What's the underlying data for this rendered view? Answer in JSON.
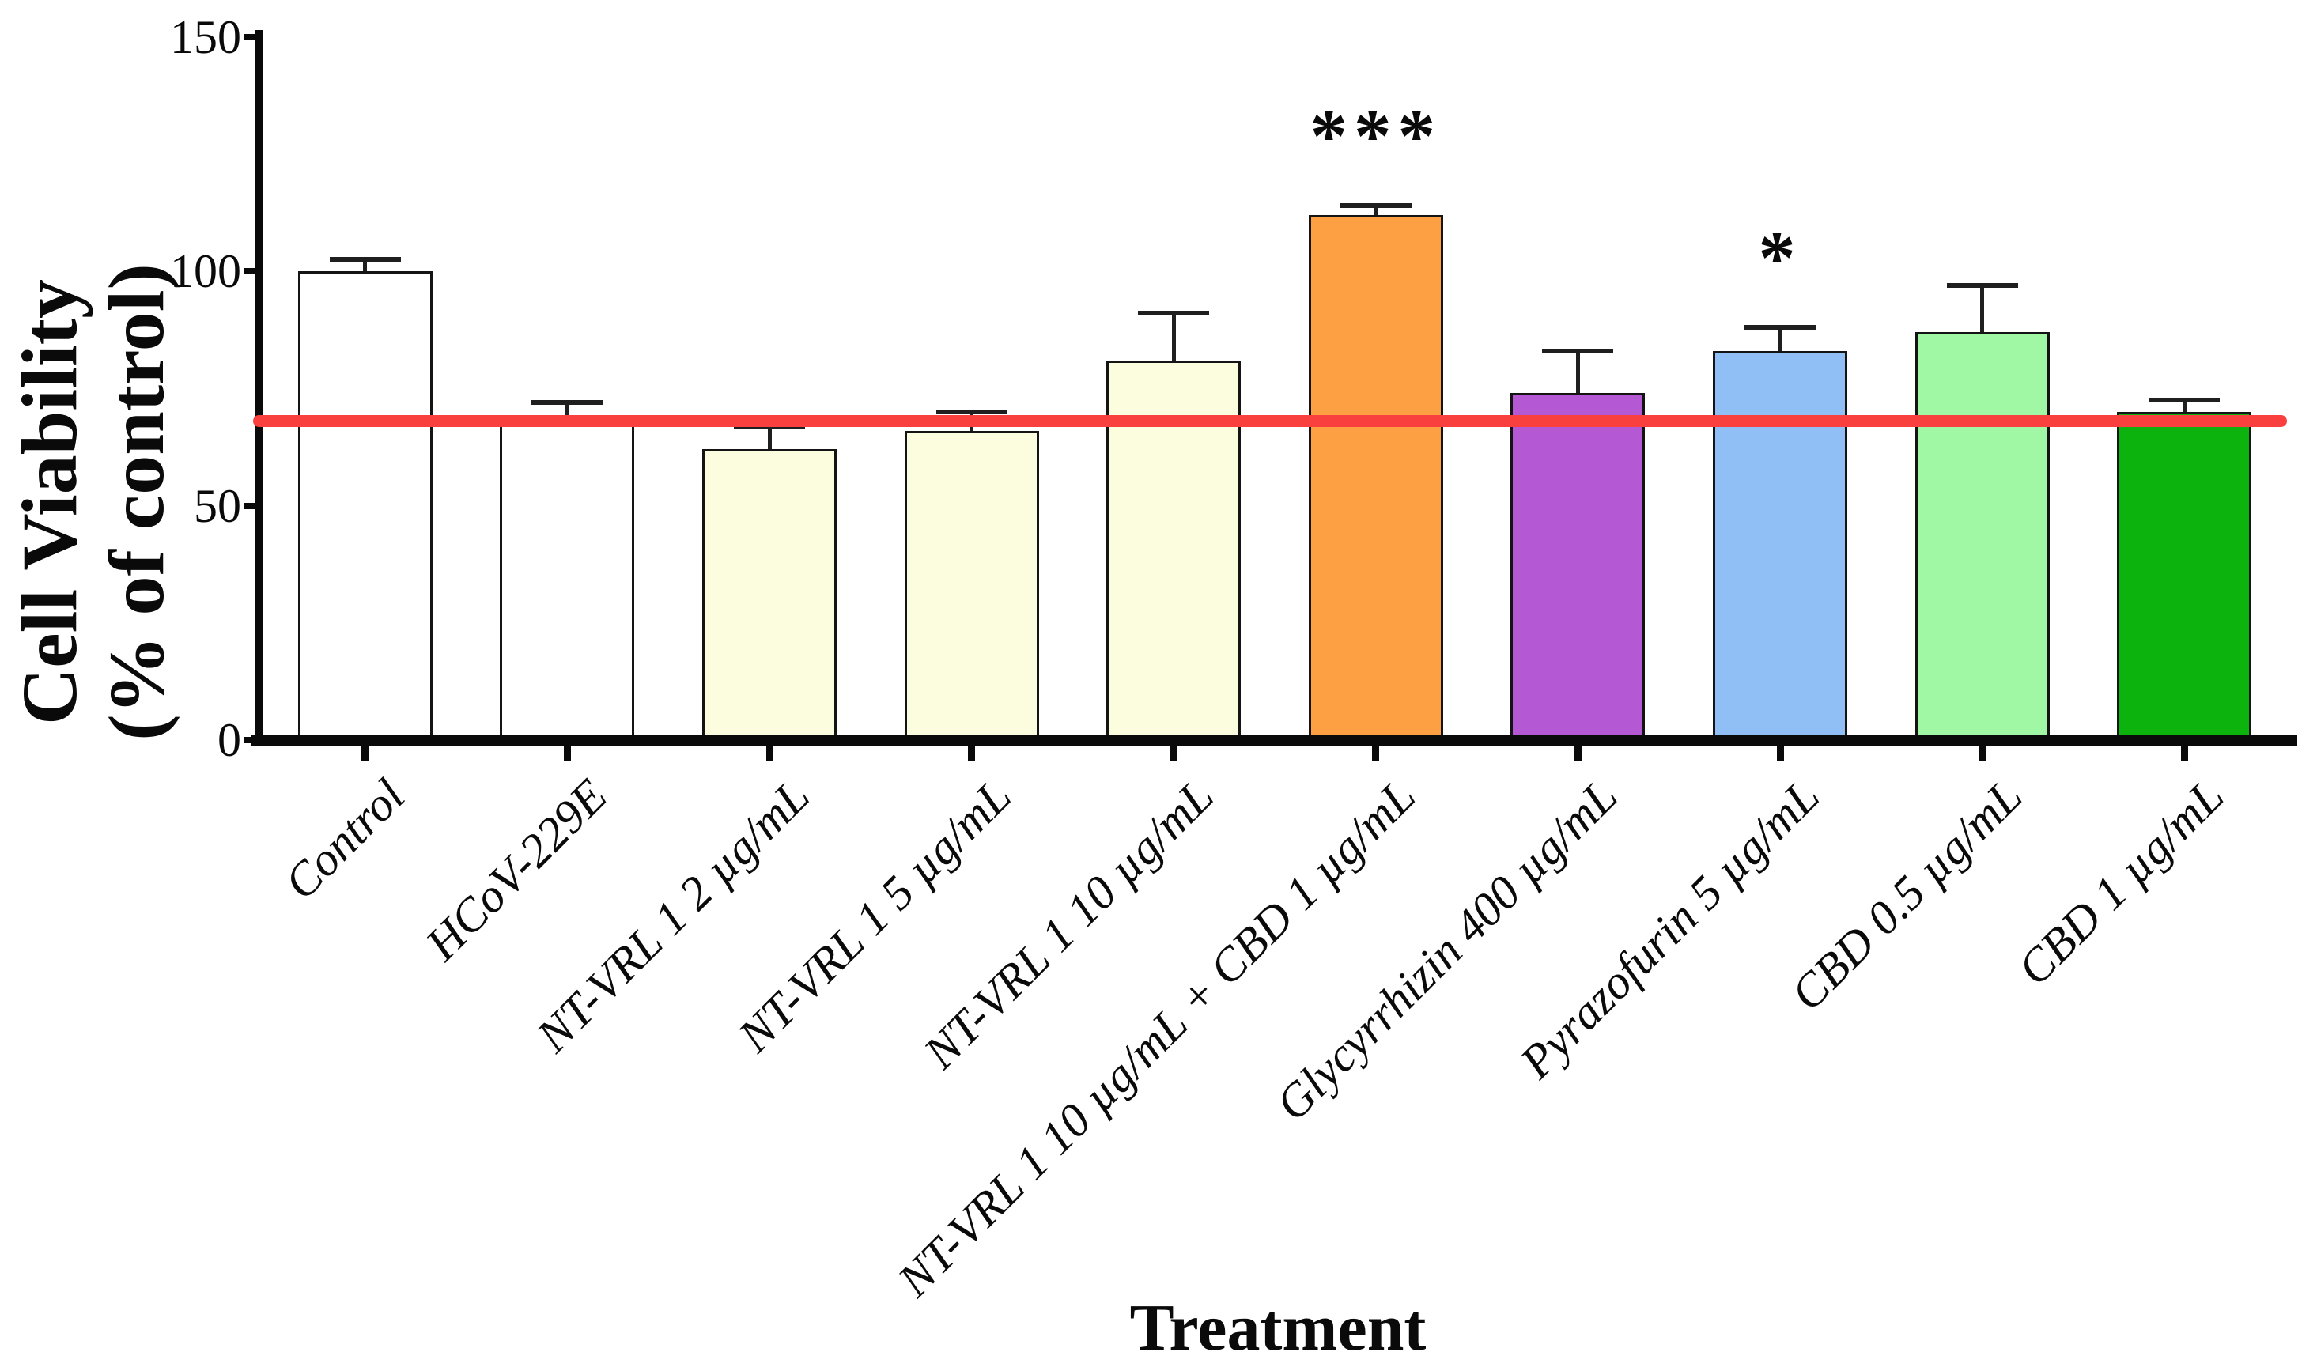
{
  "figure": {
    "ylabel": "Cell Viability\n(% of control)",
    "xlabel": "Treatment"
  },
  "colors": {
    "axis": "#0a0a0a",
    "bar_border": "#141414",
    "error_bar": "#1f1f1f",
    "reference_line": "#fa3f3f",
    "background": "#ffffff"
  },
  "chart_data": {
    "type": "bar",
    "title": "",
    "xlabel": "Treatment",
    "ylabel": "Cell Viability (% of control)",
    "ylim": [
      0,
      150
    ],
    "yticks": [
      0,
      50,
      100,
      150
    ],
    "grid": false,
    "legend": null,
    "reference_line": {
      "value": 68,
      "color": "#fa3f3f"
    },
    "categories": [
      "Control",
      "HCoV-229E",
      "NT-VRL 1 2 µg/mL",
      "NT-VRL 1 5 µg/mL",
      "NT-VRL 1 10 µg/mL",
      "NT-VRL 1 10 µg/mL + CBD 1 µg/mL",
      "Glycyrrhizin 400 µg/mL",
      "Pyrazofurin 5 µg/mL",
      "CBD 0.5 µg/mL",
      "CBD 1 µg/mL"
    ],
    "values": [
      100,
      68,
      62,
      66,
      81,
      112,
      74,
      83,
      87,
      70
    ],
    "errors": [
      2.5,
      4,
      5,
      4,
      10,
      2,
      9,
      5,
      10,
      2.5
    ],
    "bar_colors": [
      "#ffffff",
      "#ffffff",
      "#fcfcdf",
      "#fcfcdf",
      "#fcfcdf",
      "#fda044",
      "#b459d3",
      "#90bff5",
      "#a0f8a4",
      "#0db30d"
    ],
    "significance": [
      "",
      "",
      "",
      "",
      "",
      "***",
      "",
      "*",
      "",
      ""
    ]
  }
}
